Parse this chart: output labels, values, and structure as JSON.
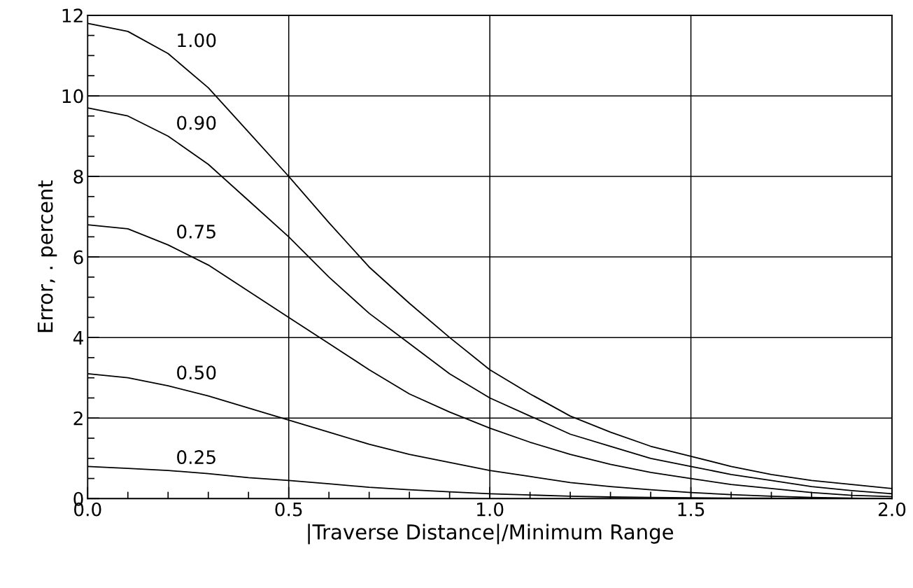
{
  "chart_data": {
    "type": "line",
    "xlabel": "|Traverse Distance|/Minimum Range",
    "ylabel": "Error, . percent",
    "x": [
      0.0,
      0.1,
      0.2,
      0.3,
      0.4,
      0.5,
      0.6,
      0.7,
      0.8,
      0.9,
      1.0,
      1.1,
      1.2,
      1.3,
      1.4,
      1.5,
      1.6,
      1.7,
      1.8,
      1.9,
      2.0
    ],
    "series": [
      {
        "name": "1.00",
        "color": "#000000",
        "values": [
          11.8,
          11.6,
          11.05,
          10.2,
          9.1,
          8.0,
          6.85,
          5.75,
          4.85,
          4.0,
          3.2,
          2.6,
          2.05,
          1.65,
          1.3,
          1.05,
          0.8,
          0.6,
          0.45,
          0.35,
          0.25
        ]
      },
      {
        "name": "0.90",
        "color": "#000000",
        "values": [
          9.7,
          9.5,
          9.0,
          8.3,
          7.4,
          6.5,
          5.5,
          4.6,
          3.85,
          3.1,
          2.5,
          2.05,
          1.6,
          1.3,
          1.0,
          0.8,
          0.6,
          0.45,
          0.3,
          0.2,
          0.12
        ]
      },
      {
        "name": "0.75",
        "color": "#000000",
        "values": [
          6.8,
          6.7,
          6.3,
          5.8,
          5.15,
          4.5,
          3.85,
          3.2,
          2.6,
          2.15,
          1.75,
          1.4,
          1.1,
          0.85,
          0.65,
          0.5,
          0.35,
          0.25,
          0.15,
          0.08,
          0.05
        ]
      },
      {
        "name": "0.50",
        "color": "#000000",
        "values": [
          3.1,
          3.0,
          2.8,
          2.55,
          2.25,
          1.95,
          1.65,
          1.35,
          1.1,
          0.9,
          0.7,
          0.55,
          0.4,
          0.3,
          0.22,
          0.15,
          0.1,
          0.06,
          0.03,
          0.01,
          0.0
        ]
      },
      {
        "name": "0.25",
        "color": "#000000",
        "values": [
          0.8,
          0.75,
          0.7,
          0.62,
          0.52,
          0.45,
          0.37,
          0.28,
          0.22,
          0.17,
          0.12,
          0.09,
          0.06,
          0.04,
          0.03,
          0.02,
          0.01,
          0.01,
          0.0,
          0.0,
          0.0
        ]
      }
    ],
    "xlim": [
      0,
      2
    ],
    "ylim": [
      0,
      12
    ],
    "xticks": [
      {
        "value": 0,
        "label": "0.0"
      },
      {
        "value": 0.5,
        "label": "0.5"
      },
      {
        "value": 1,
        "label": "1.0"
      },
      {
        "value": 1.5,
        "label": "1.5"
      },
      {
        "value": 2,
        "label": "2.0"
      }
    ],
    "yticks": [
      0,
      2,
      4,
      6,
      8,
      10,
      12
    ],
    "grid": true,
    "marker": "none",
    "line_style": "solid"
  }
}
